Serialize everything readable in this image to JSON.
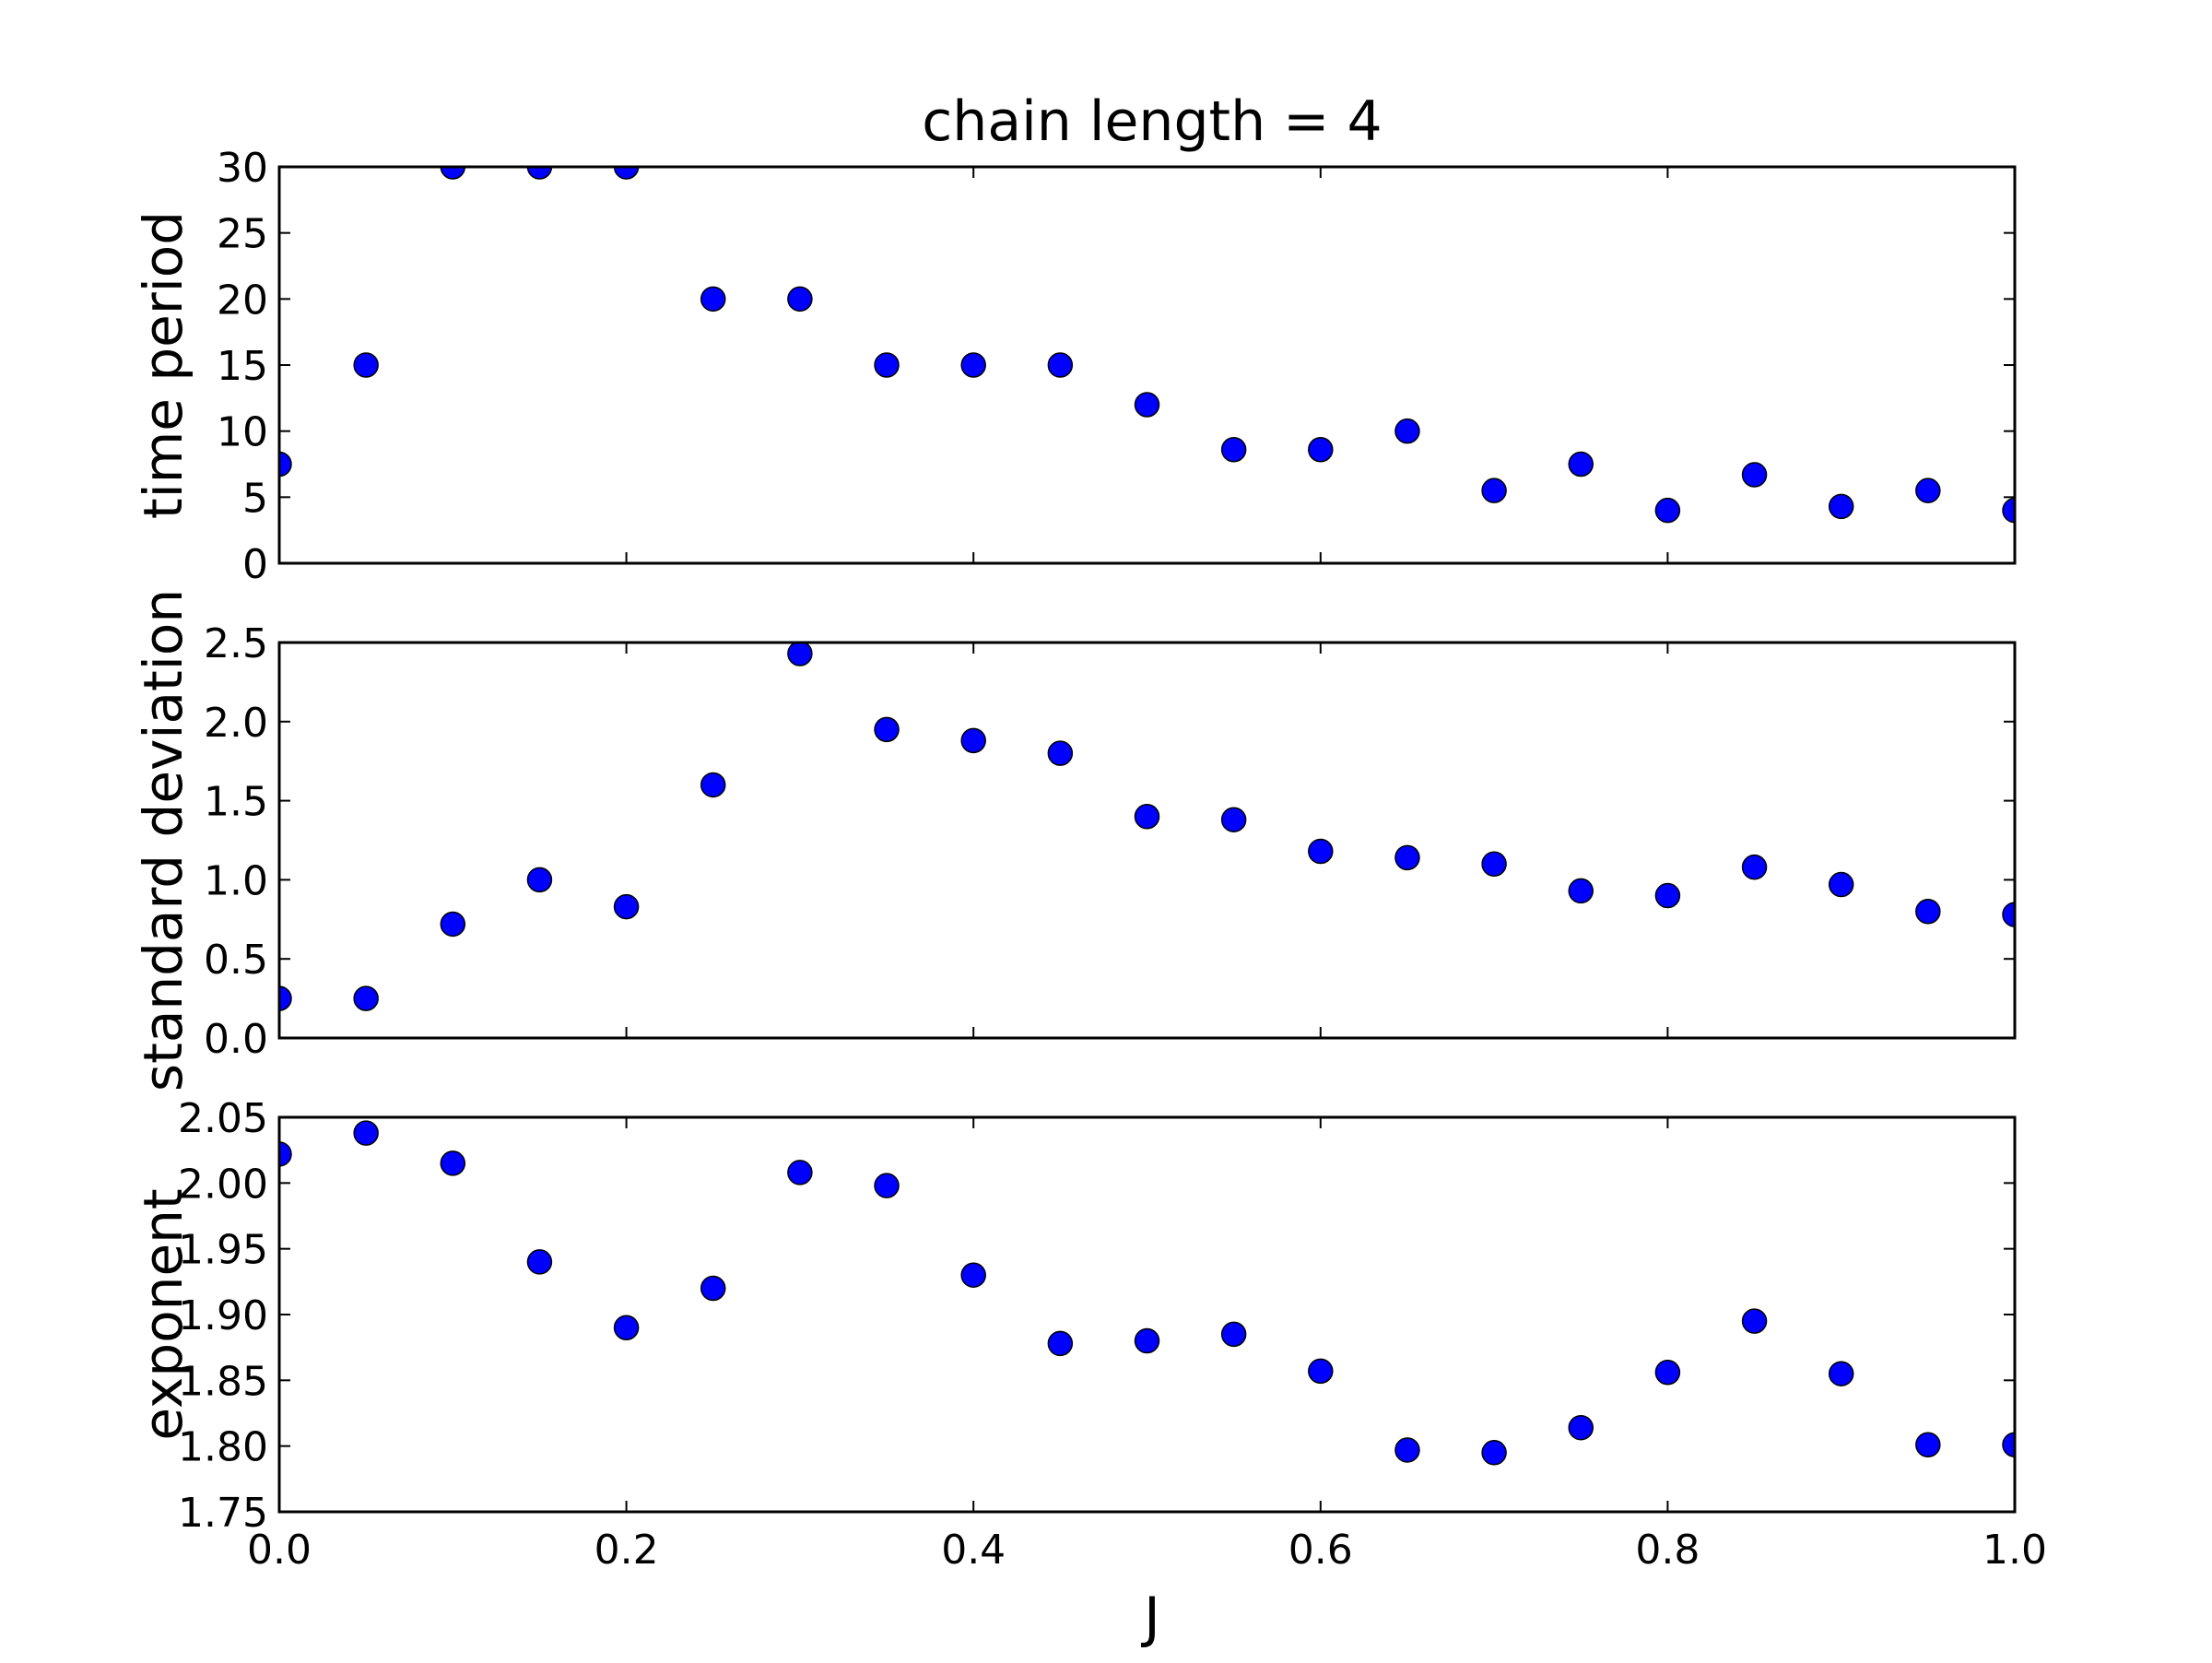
{
  "chart_data": {
    "type": "scatter",
    "title": "chain length = 4",
    "xlabel": "J",
    "xlim": [
      0.0,
      1.0
    ],
    "xticks": [
      "0.0",
      "0.2",
      "0.4",
      "0.6",
      "0.8",
      "1.0"
    ],
    "x": [
      0.0,
      0.05,
      0.1,
      0.15,
      0.2,
      0.25,
      0.3,
      0.35,
      0.4,
      0.45,
      0.5,
      0.55,
      0.6,
      0.65,
      0.7,
      0.75,
      0.8,
      0.85,
      0.9,
      0.95,
      1.0
    ],
    "marker_color": "#0000ff",
    "grid": false,
    "panels": [
      {
        "ylabel": "time period",
        "ylim": [
          0,
          30
        ],
        "yticks": [
          "0",
          "5",
          "10",
          "15",
          "20",
          "25",
          "30"
        ],
        "values": [
          7.5,
          15,
          30,
          30,
          30,
          20,
          20,
          15,
          15,
          15,
          12,
          8.6,
          8.6,
          10,
          5.5,
          7.5,
          4.0,
          6.7,
          4.3,
          5.5,
          4.0
        ]
      },
      {
        "ylabel": "standard deviation",
        "ylim": [
          0.0,
          2.5
        ],
        "yticks": [
          "0.0",
          "0.5",
          "1.0",
          "1.5",
          "2.0",
          "2.5"
        ],
        "values": [
          0.25,
          0.25,
          0.72,
          1.0,
          0.83,
          1.6,
          2.43,
          1.95,
          1.88,
          1.8,
          1.4,
          1.38,
          1.18,
          1.14,
          1.1,
          0.93,
          0.9,
          1.08,
          0.97,
          0.8,
          0.78
        ]
      },
      {
        "ylabel": "exponent",
        "ylim": [
          1.75,
          2.05
        ],
        "yticks": [
          "1.75",
          "1.80",
          "1.85",
          "1.90",
          "1.95",
          "2.00",
          "2.05"
        ],
        "values": [
          2.022,
          2.038,
          2.015,
          1.94,
          1.89,
          1.92,
          2.008,
          1.998,
          1.93,
          1.878,
          1.88,
          1.885,
          1.857,
          1.797,
          1.795,
          1.814,
          1.856,
          1.895,
          1.855,
          1.801,
          1.801
        ]
      }
    ]
  }
}
